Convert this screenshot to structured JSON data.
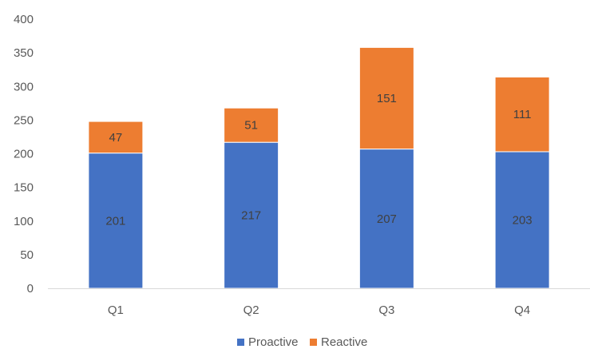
{
  "chart_data": {
    "type": "bar",
    "stacked": true,
    "categories": [
      "Q1",
      "Q2",
      "Q3",
      "Q4"
    ],
    "series": [
      {
        "name": "Proactive",
        "values": [
          201,
          217,
          207,
          203
        ],
        "color": "#4472C4"
      },
      {
        "name": "Reactive",
        "values": [
          47,
          51,
          151,
          111
        ],
        "color": "#ED7D31"
      }
    ],
    "ylim": [
      0,
      400
    ],
    "yticks": [
      0,
      50,
      100,
      150,
      200,
      250,
      300,
      350,
      400
    ],
    "grid": false,
    "data_labels": true,
    "legend_position": "bottom"
  }
}
